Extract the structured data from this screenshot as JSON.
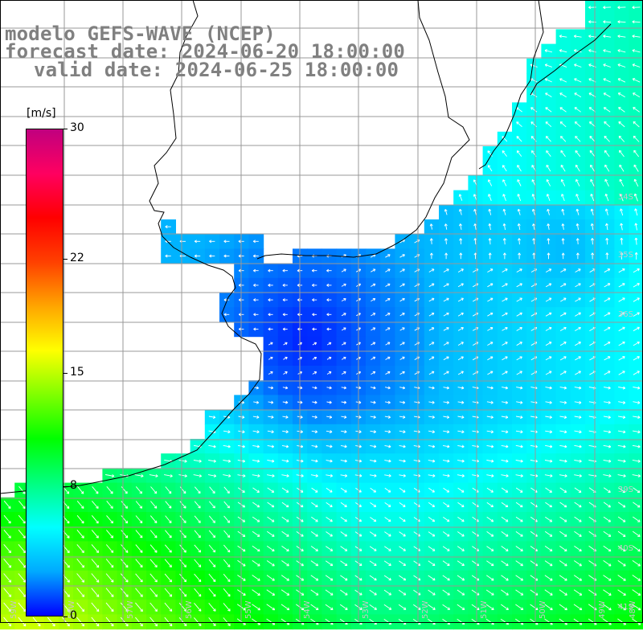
{
  "title": {
    "model": "modelo GEFS-WAVE (NCEP)",
    "forecast": "forecast date: 2024-06-20 18:00:00",
    "valid": "valid date: 2024-06-25 18:00:00"
  },
  "colorbar": {
    "unit": "[m/s]",
    "min": 0,
    "max": 30,
    "ticks": [
      "30",
      "22",
      "15",
      "8",
      "0"
    ],
    "tick_values": [
      30,
      22,
      15,
      8,
      0
    ],
    "colors": [
      "#0000ff",
      "#00aaff",
      "#00ffff",
      "#00ff80",
      "#00ff00",
      "#80ff00",
      "#ffff00",
      "#ffa500",
      "#ff4000",
      "#ff0000",
      "#ff0060",
      "#c0007f"
    ]
  },
  "grid": {
    "lat_labels": [
      "34S",
      "35S",
      "36S",
      "39S",
      "40S",
      "41S"
    ],
    "lon_labels": [
      "59W",
      "58W",
      "57W",
      "56W",
      "55W",
      "54W",
      "53W",
      "52W",
      "51W",
      "50W",
      "49W",
      "48W"
    ]
  },
  "colors": {
    "land": "#ffffff",
    "coast": "#000000",
    "grid": "#999999",
    "vector": "#ffffff",
    "title": "#808080"
  }
}
